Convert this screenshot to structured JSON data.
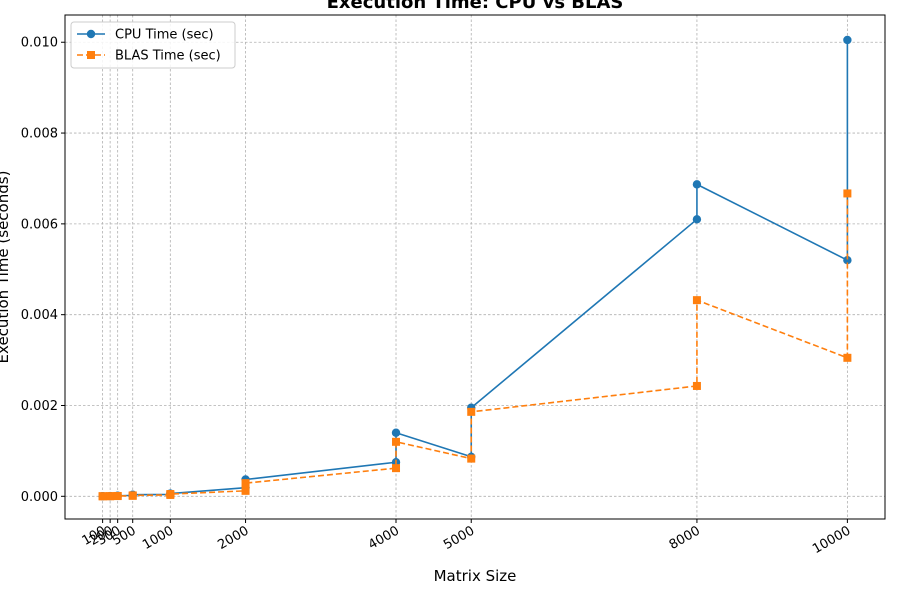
{
  "chart_data": {
    "type": "line",
    "title": "Execution Time: CPU vs BLAS",
    "xlabel": "Matrix Size",
    "ylabel": "Execution Time (seconds)",
    "x_ticks": [
      100,
      200,
      300,
      500,
      1000,
      2000,
      4000,
      5000,
      8000,
      10000
    ],
    "x_tick_labels": [
      "100",
      "200",
      "300",
      "500",
      "1000",
      "2000",
      "4000",
      "5000",
      "8000",
      "10000"
    ],
    "y_ticks": [
      0.0,
      0.002,
      0.004,
      0.006,
      0.008,
      0.01
    ],
    "y_tick_labels": [
      "0.000",
      "0.002",
      "0.004",
      "0.006",
      "0.008",
      "0.010"
    ],
    "xlim": [
      -400,
      10500
    ],
    "ylim": [
      -0.0005,
      0.0106
    ],
    "grid": true,
    "legend_position": "top-left",
    "series": [
      {
        "name": "CPU Time (sec)",
        "color": "#1f77b4",
        "marker": "circle",
        "linestyle": "solid",
        "x": [
          100,
          100,
          200,
          200,
          300,
          300,
          500,
          500,
          1000,
          1000,
          2000,
          2000,
          4000,
          4000,
          5000,
          5000,
          8000,
          8000,
          10000,
          10000
        ],
        "y": [
          1e-06,
          2e-06,
          3e-06,
          5e-06,
          8e-06,
          1.2e-05,
          2e-05,
          3.5e-05,
          4e-05,
          6e-05,
          0.00019,
          0.00037,
          0.00075,
          0.0014,
          0.00087,
          0.00195,
          0.0061,
          0.00687,
          0.0052,
          0.01005
        ]
      },
      {
        "name": "BLAS Time (sec)",
        "color": "#ff7f0e",
        "marker": "square",
        "linestyle": "dashed",
        "x": [
          100,
          100,
          200,
          200,
          300,
          300,
          500,
          500,
          1000,
          1000,
          2000,
          2000,
          4000,
          4000,
          5000,
          5000,
          8000,
          8000,
          10000,
          10000
        ],
        "y": [
          1e-06,
          1e-06,
          2e-06,
          3e-06,
          5e-06,
          7e-06,
          1e-05,
          2e-05,
          3e-05,
          5e-05,
          0.00012,
          0.00029,
          0.00062,
          0.0012,
          0.00083,
          0.00186,
          0.00243,
          0.00432,
          0.00305,
          0.00667
        ]
      }
    ]
  }
}
